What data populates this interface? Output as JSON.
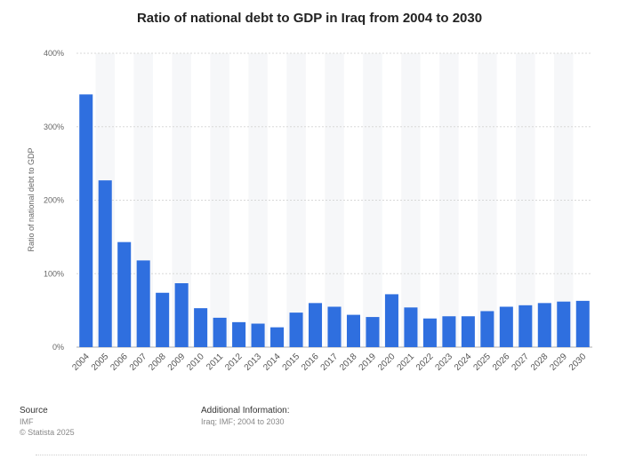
{
  "chart_data": {
    "type": "bar",
    "title": "Ratio of national debt to GDP in Iraq from 2004 to 2030",
    "ylabel": "Ratio of national debt to GDP",
    "xlabel": "",
    "ylim": [
      0,
      400
    ],
    "yticks": [
      "0%",
      "100%",
      "200%",
      "300%",
      "400%"
    ],
    "categories": [
      "2004",
      "2005",
      "2006",
      "2007",
      "2008",
      "2009",
      "2010",
      "2011",
      "2012",
      "2013",
      "2014",
      "2015",
      "2016",
      "2017",
      "2018",
      "2019",
      "2020",
      "2021",
      "2022",
      "2023",
      "2024",
      "2025",
      "2026",
      "2027",
      "2028",
      "2029",
      "2030"
    ],
    "values": [
      344,
      227,
      143,
      118,
      74,
      87,
      53,
      40,
      34,
      32,
      27,
      47,
      60,
      55,
      44,
      41,
      72,
      54,
      39,
      42,
      42,
      49,
      55,
      57,
      60,
      62,
      63
    ],
    "bar_color": "#2f6fdf",
    "grid": true,
    "legend": "none"
  },
  "footer": {
    "source_label": "Source",
    "source_lines": [
      "IMF",
      "© Statista 2025"
    ],
    "additional_label": "Additional Information:",
    "additional_text": "Iraq; IMF; 2004 to 2030"
  }
}
